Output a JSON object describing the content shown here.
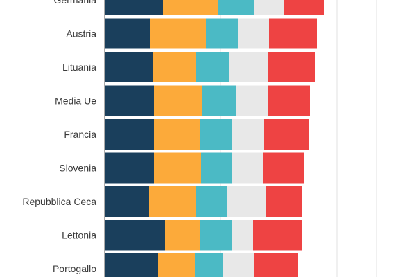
{
  "chart_data": {
    "type": "bar",
    "orientation": "horizontal",
    "stacked": true,
    "categories": [
      "Germania",
      "Austria",
      "Lituania",
      "Media Ue",
      "Francia",
      "Slovenia",
      "Repubblica Ceca",
      "Lettonia",
      "Portogallo"
    ],
    "series": [
      {
        "color": "#1a3f5c",
        "values": [
          84,
          66,
          70,
          71,
          71,
          71,
          64,
          87,
          77
        ]
      },
      {
        "color": "#fcaa3a",
        "values": [
          80,
          80,
          61,
          69,
          67,
          68,
          68,
          50,
          53
        ]
      },
      {
        "color": "#4bbac5",
        "values": [
          51,
          46,
          48,
          49,
          45,
          44,
          45,
          46,
          40
        ]
      },
      {
        "color": "#e8e8e8",
        "values": [
          44,
          45,
          56,
          47,
          47,
          45,
          56,
          31,
          46
        ]
      },
      {
        "color": "#ee4343",
        "values": [
          57,
          69,
          68,
          60,
          64,
          60,
          52,
          71,
          63
        ]
      }
    ],
    "grid": true,
    "legend": "none"
  }
}
